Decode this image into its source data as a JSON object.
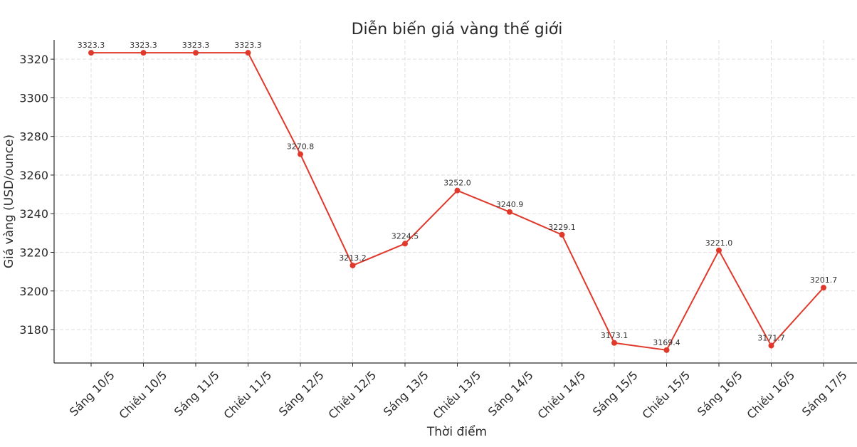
{
  "chart_data": {
    "type": "line",
    "title": "Diễn biến giá vàng thế giới",
    "xlabel": "Thời điểm",
    "ylabel": "Giá vàng (USD/ounce)",
    "categories": [
      "Sáng 10/5",
      "Chiều 10/5",
      "Sáng 11/5",
      "Chiều 11/5",
      "Sáng 12/5",
      "Chiều 12/5",
      "Sáng 13/5",
      "Chiều 13/5",
      "Sáng 14/5",
      "Chiều 14/5",
      "Sáng 15/5",
      "Chiều 15/5",
      "Sáng 16/5",
      "Chiều 16/5",
      "Sáng 17/5"
    ],
    "series": [
      {
        "values": [
          3323.3,
          3323.3,
          3323.3,
          3323.3,
          3270.8,
          3213.2,
          3224.5,
          3252.0,
          3240.9,
          3229.1,
          3173.1,
          3169.4,
          3221.0,
          3171.7,
          3201.7
        ],
        "value_labels": [
          "3323.3",
          "3323.3",
          "3323.3",
          "3323.3",
          "3270.8",
          "3213.2",
          "3224.5",
          "3252.0",
          "3240.9",
          "3229.1",
          "3173.1",
          "3169.4",
          "3221.0",
          "3171.7",
          "3201.7"
        ],
        "color": "#e0392b"
      }
    ],
    "yticks": [
      3180,
      3200,
      3220,
      3240,
      3260,
      3280,
      3300,
      3320
    ],
    "ytick_labels": [
      "3180",
      "3200",
      "3220",
      "3240",
      "3260",
      "3280",
      "3300",
      "3320"
    ],
    "ylim": [
      3162.7,
      3330.0
    ],
    "grid": true,
    "legend": "none"
  }
}
